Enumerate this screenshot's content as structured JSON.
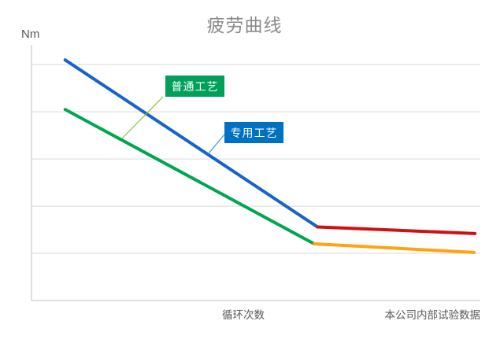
{
  "page": {
    "background": "#ffffff"
  },
  "colors": {
    "title_text": "#8a8a8a",
    "axis_text": "#595959",
    "gridline": "#d9d9d9",
    "axis_line": "#bfbfbf"
  },
  "source_note": "本公司内部试验数据",
  "callouts": [
    {
      "text": "普通工艺",
      "bg": "#00a05a",
      "leader_color": "#8cbf44",
      "points_to_series": "普通工艺"
    },
    {
      "text": "专用工艺",
      "bg": "#0070c0",
      "leader_color": "#3399dd",
      "points_to_series": "专用工艺"
    }
  ],
  "chart_data": {
    "type": "line",
    "title": "疲劳曲线",
    "xlabel": "循环次数",
    "ylabel": "Nm",
    "x_ticks": [],
    "y_ticks": [],
    "xlim": [
      0,
      10
    ],
    "ylim": [
      0,
      5.42
    ],
    "gridlines_y": [
      1,
      2,
      3,
      4,
      5
    ],
    "grid": "horizontal-only",
    "legend_position": "inline-callouts",
    "axis_note": "axes are unlabeled; y values expressed in gridline units above baseline",
    "series": [
      {
        "name": "专用工艺",
        "points": [
          [
            0.75,
            5.1
          ],
          [
            6.37,
            1.56
          ],
          [
            9.88,
            1.42
          ]
        ],
        "segment_colors": [
          "#1565c6",
          "#cf1110"
        ],
        "description": "steep blue fatigue decline, then nearly flat red plateau"
      },
      {
        "name": "普通工艺",
        "points": [
          [
            0.75,
            4.05
          ],
          [
            6.3,
            1.2
          ],
          [
            9.86,
            1.02
          ]
        ],
        "segment_colors": [
          "#00a651",
          "#ffa40f"
        ],
        "description": "steep green fatigue decline, then nearly flat orange plateau"
      }
    ]
  }
}
